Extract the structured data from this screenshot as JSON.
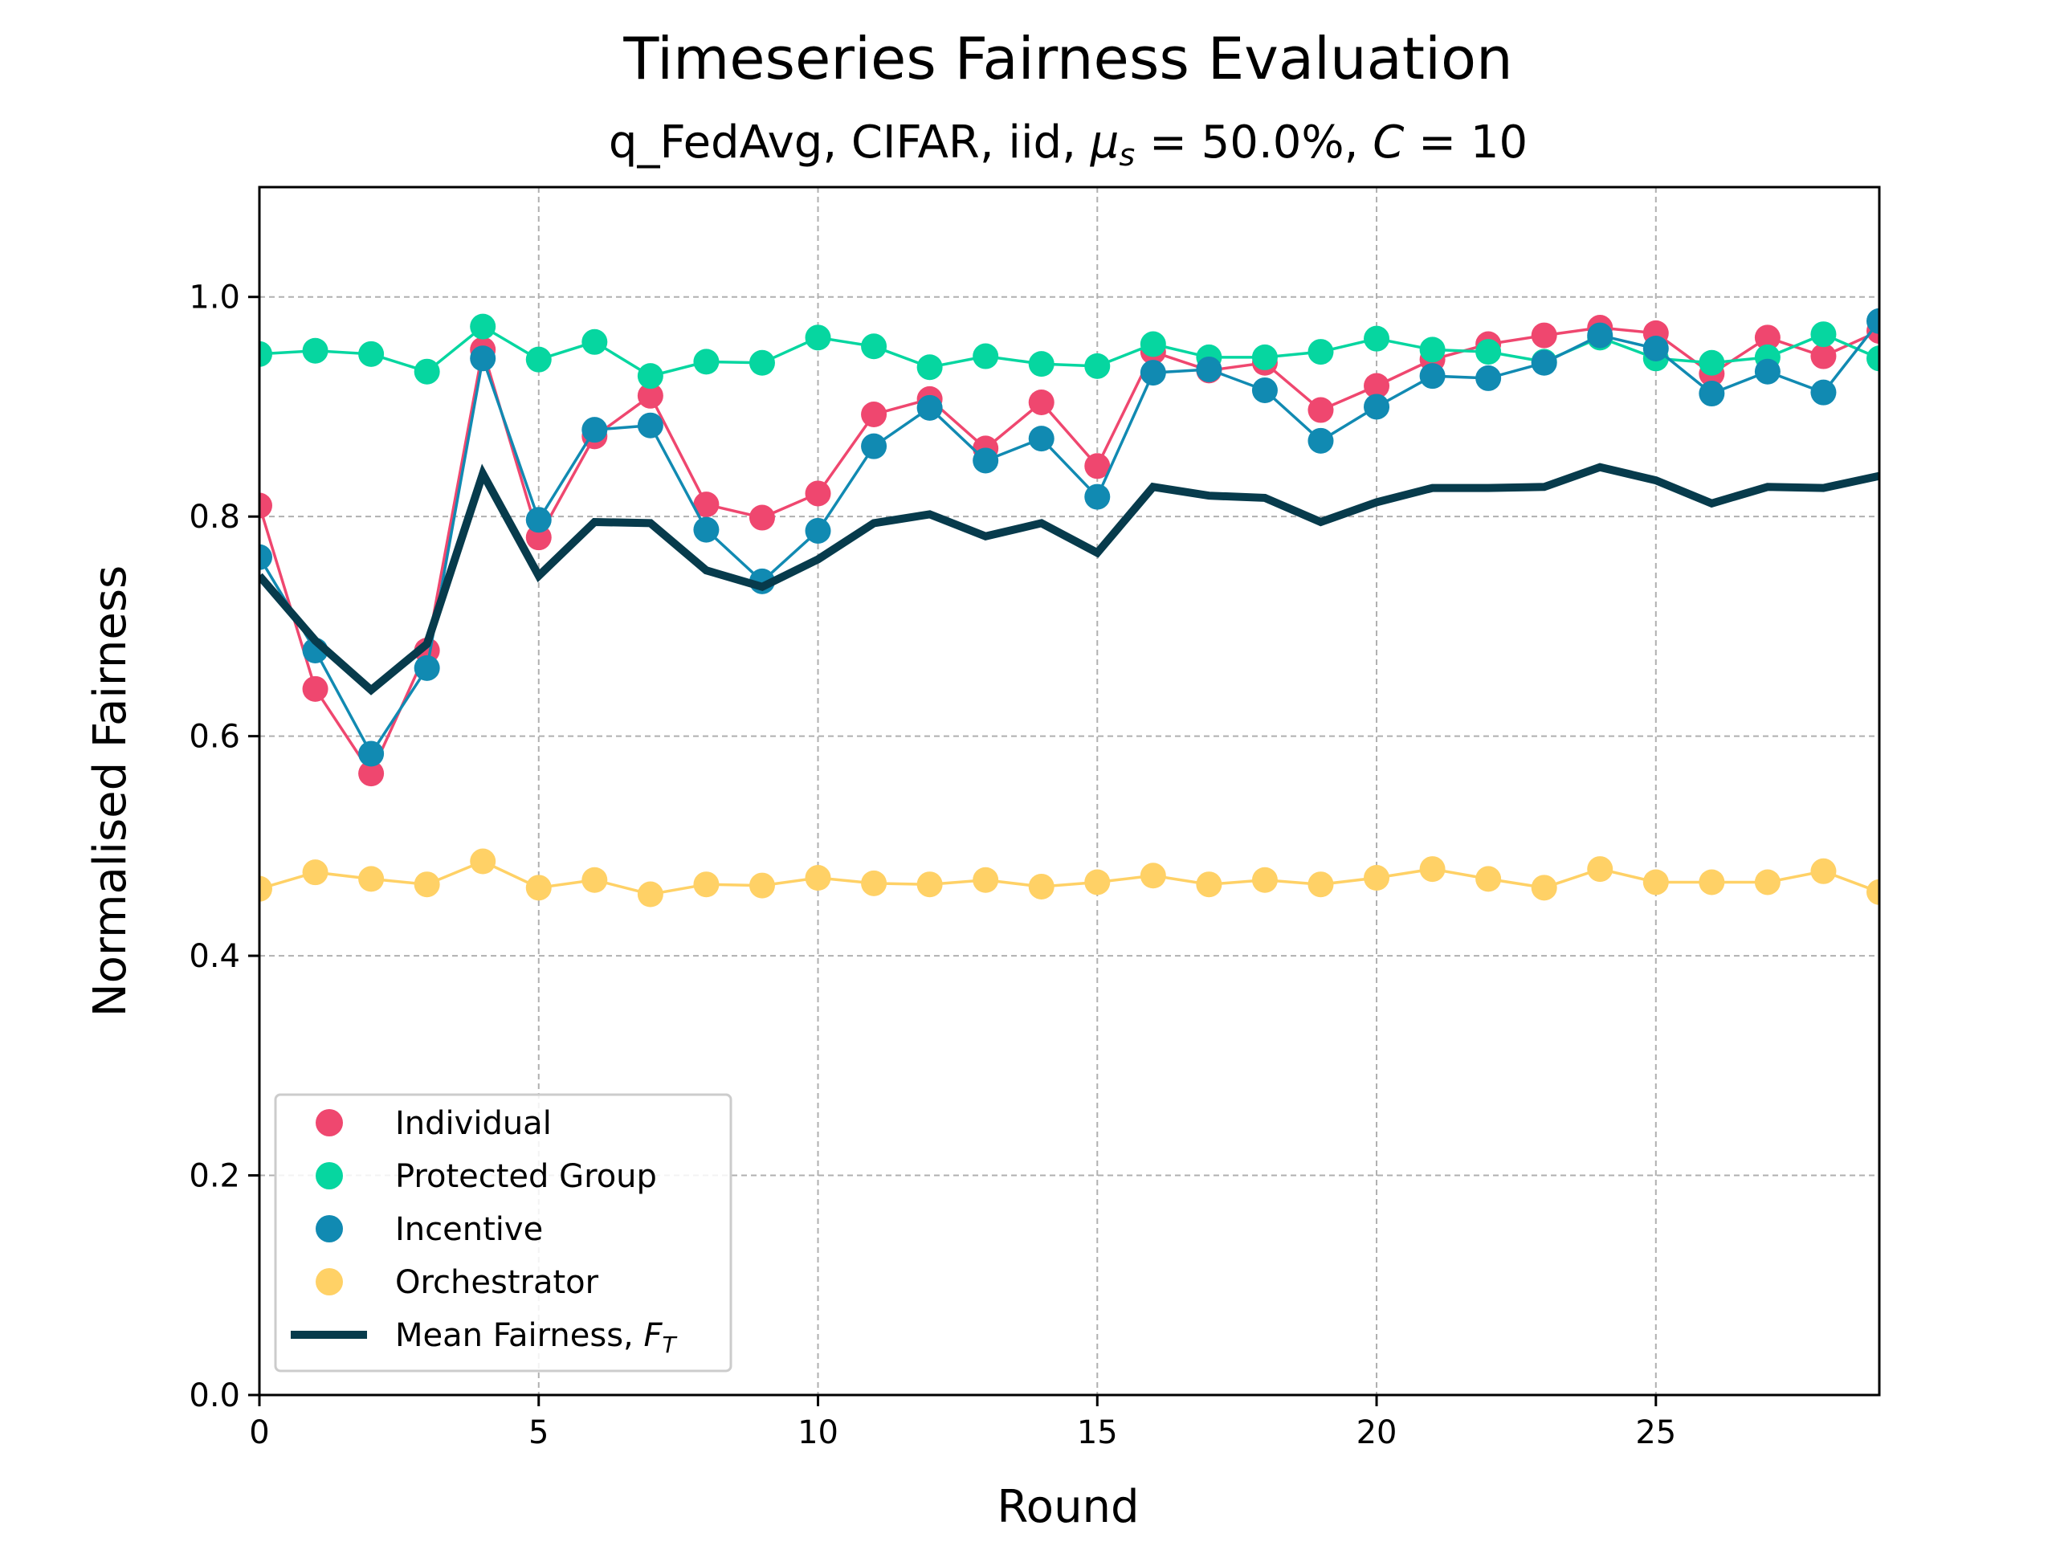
{
  "chart_data": {
    "type": "line",
    "title": "Timeseries Fairness Evaluation",
    "subtitle_prefix": "q_FedAvg, CIFAR, iid, ",
    "subtitle_mu": "μ",
    "subtitle_mu_sub": "s",
    "subtitle_mu_value": " = 50.0%, ",
    "subtitle_c": "C",
    "subtitle_c_value": " = 10",
    "xlabel": "Round",
    "ylabel": "Normalised Fairness",
    "xlim": [
      0,
      29
    ],
    "ylim": [
      0,
      1.1
    ],
    "xticks": [
      0,
      5,
      10,
      15,
      20,
      25
    ],
    "yticks": [
      0.0,
      0.2,
      0.4,
      0.6,
      0.8,
      1.0
    ],
    "ytick_labels": [
      "0.0",
      "0.2",
      "0.4",
      "0.6",
      "0.8",
      "1.0"
    ],
    "grid": true,
    "legend_position": "lower-left",
    "x": [
      0,
      1,
      2,
      3,
      4,
      5,
      6,
      7,
      8,
      9,
      10,
      11,
      12,
      13,
      14,
      15,
      16,
      17,
      18,
      19,
      20,
      21,
      22,
      23,
      24,
      25,
      26,
      27,
      28,
      29
    ],
    "series": [
      {
        "name": "Individual",
        "color": "#ef476f",
        "marker": "circle",
        "values": [
          0.81,
          0.643,
          0.566,
          0.678,
          0.952,
          0.781,
          0.873,
          0.91,
          0.811,
          0.799,
          0.821,
          0.893,
          0.907,
          0.862,
          0.904,
          0.846,
          0.95,
          0.933,
          0.94,
          0.897,
          0.919,
          0.943,
          0.957,
          0.965,
          0.972,
          0.967,
          0.93,
          0.963,
          0.946,
          0.969
        ]
      },
      {
        "name": "Protected Group",
        "color": "#06d6a0",
        "marker": "circle",
        "values": [
          0.948,
          0.951,
          0.948,
          0.932,
          0.973,
          0.943,
          0.959,
          0.928,
          0.941,
          0.94,
          0.963,
          0.955,
          0.936,
          0.946,
          0.939,
          0.937,
          0.957,
          0.945,
          0.945,
          0.95,
          0.962,
          0.952,
          0.95,
          0.941,
          0.963,
          0.944,
          0.94,
          0.945,
          0.966,
          0.944
        ]
      },
      {
        "name": "Incentive",
        "color": "#118ab2",
        "marker": "circle",
        "values": [
          0.763,
          0.678,
          0.584,
          0.662,
          0.944,
          0.797,
          0.879,
          0.883,
          0.788,
          0.741,
          0.787,
          0.864,
          0.899,
          0.851,
          0.871,
          0.818,
          0.931,
          0.934,
          0.915,
          0.869,
          0.9,
          0.928,
          0.926,
          0.94,
          0.965,
          0.953,
          0.912,
          0.932,
          0.913,
          0.978
        ]
      },
      {
        "name": "Orchestrator",
        "color": "#ffd166",
        "marker": "circle",
        "values": [
          0.461,
          0.476,
          0.47,
          0.465,
          0.486,
          0.462,
          0.469,
          0.456,
          0.465,
          0.464,
          0.471,
          0.466,
          0.465,
          0.469,
          0.463,
          0.467,
          0.473,
          0.465,
          0.469,
          0.465,
          0.471,
          0.479,
          0.47,
          0.462,
          0.479,
          0.467,
          0.467,
          0.467,
          0.477,
          0.458
        ]
      },
      {
        "name": "Mean Fairness, ",
        "name_italic": "F",
        "name_sub": "T",
        "color": "#073b4c",
        "marker": "none",
        "values": [
          0.746,
          0.687,
          0.642,
          0.684,
          0.839,
          0.746,
          0.795,
          0.794,
          0.751,
          0.736,
          0.761,
          0.794,
          0.802,
          0.782,
          0.794,
          0.767,
          0.827,
          0.819,
          0.817,
          0.795,
          0.813,
          0.826,
          0.826,
          0.827,
          0.845,
          0.833,
          0.812,
          0.827,
          0.826,
          0.837
        ]
      }
    ]
  }
}
